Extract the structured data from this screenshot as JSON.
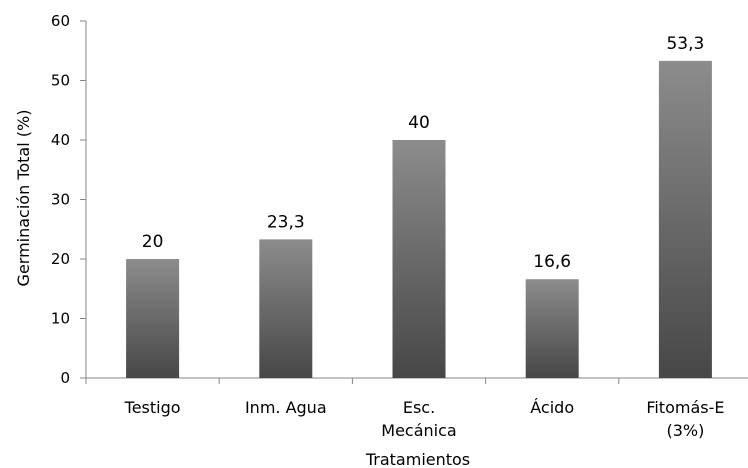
{
  "chart_data": {
    "type": "bar",
    "title": "",
    "xlabel": "Tratamientos",
    "ylabel": "Germinación Total (%)",
    "ylim": [
      0,
      60
    ],
    "yticks": [
      "0",
      "10",
      "20",
      "30",
      "40",
      "50",
      "60"
    ],
    "categories": [
      [
        "Testigo"
      ],
      [
        "Inm. Agua"
      ],
      [
        "Esc.",
        "Mecánica"
      ],
      [
        "Ácido"
      ],
      [
        "Fitomás-E",
        "(3%)"
      ]
    ],
    "values": [
      20,
      23.3,
      40,
      16.6,
      53.3
    ],
    "data_labels": [
      "20",
      "23,3",
      "40",
      "16,6",
      "53,3"
    ],
    "grid": false,
    "legend": "none",
    "bar_color_top": "#8c8c8c",
    "bar_color_bottom": "#474747"
  }
}
